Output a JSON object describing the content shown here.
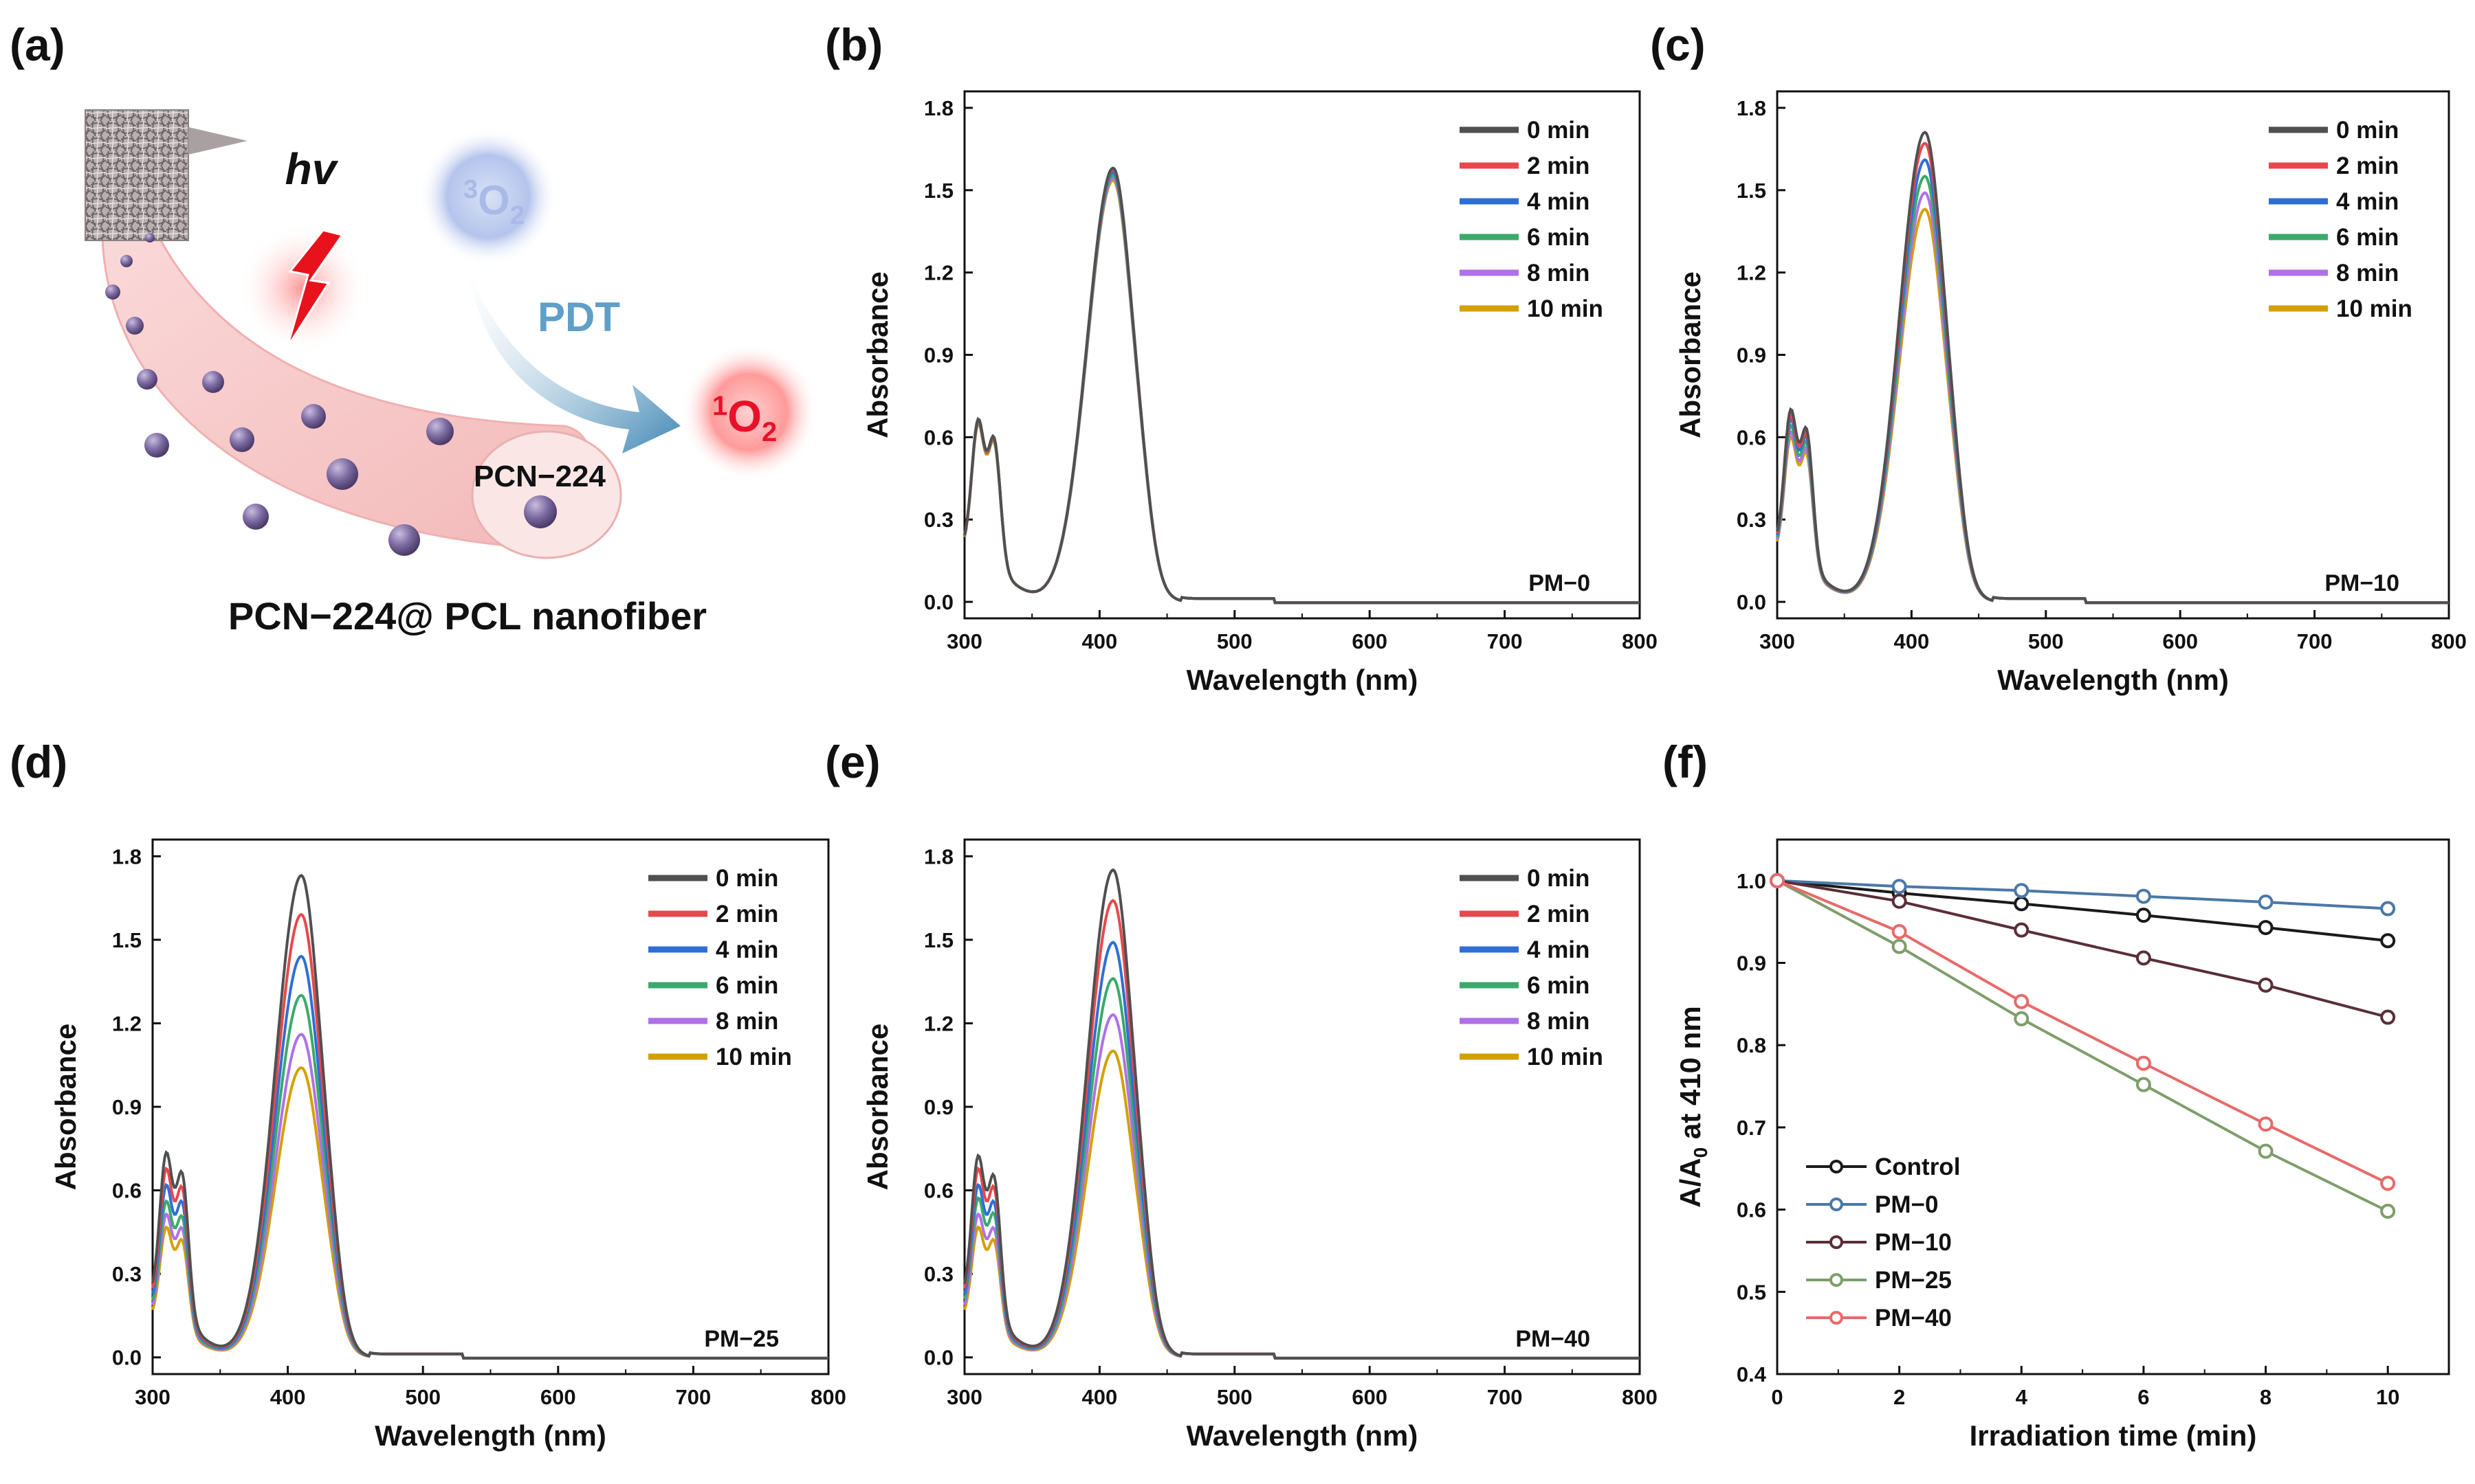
{
  "figure": {
    "panel_a": {
      "letter": "(a)",
      "hv": "hv",
      "pdt": "PDT",
      "triplet_sup": "3",
      "triplet_main": "O",
      "triplet_sub": "2",
      "singlet_sup": "1",
      "singlet_main": "O",
      "singlet_sub": "2",
      "particle_label": "PCN−224",
      "caption": "PCN−224@ PCL nanofiber",
      "colors": {
        "fiber": "#f8c8c8",
        "particle": "#7c6aa0",
        "triplet": "#aab9e6",
        "singlet": "#ff5a5a",
        "singlet_text": "#e8102a",
        "arrow": "#4f8fb5",
        "pdt_text": "#5f9fc8",
        "bolt": "#e8121c"
      }
    }
  },
  "chart_data": [
    {
      "id": "b",
      "letter": "(b)",
      "type": "line",
      "sample_label": "PM−0",
      "xlabel": "Wavelength (nm)",
      "ylabel": "Absorbance",
      "xlim": [
        300,
        800
      ],
      "ylim": [
        -0.06,
        1.86
      ],
      "xticks": [
        "300",
        "400",
        "500",
        "600",
        "700",
        "800"
      ],
      "yticks": [
        "0.0",
        "0.3",
        "0.6",
        "0.9",
        "1.2",
        "1.5",
        "1.8"
      ],
      "legend": "top-right",
      "series": [
        {
          "name": "0 min",
          "color": "#505050",
          "peak": 1.58,
          "q": 0.57
        },
        {
          "name": "2 min",
          "color": "#e8484c",
          "peak": 1.575,
          "q": 0.565
        },
        {
          "name": "4 min",
          "color": "#2e6fd6",
          "peak": 1.565,
          "q": 0.565
        },
        {
          "name": "6 min",
          "color": "#3aaa6a",
          "peak": 1.555,
          "q": 0.56
        },
        {
          "name": "8 min",
          "color": "#b070e8",
          "peak": 1.545,
          "q": 0.56
        },
        {
          "name": "10 min",
          "color": "#d4a000",
          "peak": 1.535,
          "q": 0.555
        }
      ]
    },
    {
      "id": "c",
      "letter": "(c)",
      "type": "line",
      "sample_label": "PM−10",
      "xlabel": "Wavelength (nm)",
      "ylabel": "Absorbance",
      "xlim": [
        300,
        800
      ],
      "ylim": [
        -0.06,
        1.86
      ],
      "xticks": [
        "300",
        "400",
        "500",
        "600",
        "700",
        "800"
      ],
      "yticks": [
        "0.0",
        "0.3",
        "0.6",
        "0.9",
        "1.2",
        "1.5",
        "1.8"
      ],
      "legend": "top-right",
      "series": [
        {
          "name": "0 min",
          "color": "#505050",
          "peak": 1.71,
          "q": 0.6
        },
        {
          "name": "2 min",
          "color": "#e8484c",
          "peak": 1.67,
          "q": 0.585
        },
        {
          "name": "4 min",
          "color": "#2e6fd6",
          "peak": 1.61,
          "q": 0.57
        },
        {
          "name": "6 min",
          "color": "#3aaa6a",
          "peak": 1.55,
          "q": 0.55
        },
        {
          "name": "8 min",
          "color": "#b070e8",
          "peak": 1.49,
          "q": 0.53
        },
        {
          "name": "10 min",
          "color": "#d4a000",
          "peak": 1.43,
          "q": 0.515
        }
      ]
    },
    {
      "id": "d",
      "letter": "(d)",
      "type": "line",
      "sample_label": "PM−25",
      "xlabel": "Wavelength (nm)",
      "ylabel": "Absorbance",
      "xlim": [
        300,
        800
      ],
      "ylim": [
        -0.06,
        1.86
      ],
      "xticks": [
        "300",
        "400",
        "500",
        "600",
        "700",
        "800"
      ],
      "yticks": [
        "0.0",
        "0.3",
        "0.6",
        "0.9",
        "1.2",
        "1.5",
        "1.8"
      ],
      "legend": "top-right",
      "series": [
        {
          "name": "0 min",
          "color": "#505050",
          "peak": 1.73,
          "q": 0.63
        },
        {
          "name": "2 min",
          "color": "#e8484c",
          "peak": 1.59,
          "q": 0.58
        },
        {
          "name": "4 min",
          "color": "#2e6fd6",
          "peak": 1.44,
          "q": 0.53
        },
        {
          "name": "6 min",
          "color": "#3aaa6a",
          "peak": 1.3,
          "q": 0.48
        },
        {
          "name": "8 min",
          "color": "#b070e8",
          "peak": 1.16,
          "q": 0.44
        },
        {
          "name": "10 min",
          "color": "#d4a000",
          "peak": 1.04,
          "q": 0.4
        }
      ]
    },
    {
      "id": "e",
      "letter": "(e)",
      "type": "line",
      "sample_label": "PM−40",
      "xlabel": "Wavelength (nm)",
      "ylabel": "Absorbance",
      "xlim": [
        300,
        800
      ],
      "ylim": [
        -0.06,
        1.86
      ],
      "xticks": [
        "300",
        "400",
        "500",
        "600",
        "700",
        "800"
      ],
      "yticks": [
        "0.0",
        "0.3",
        "0.6",
        "0.9",
        "1.2",
        "1.5",
        "1.8"
      ],
      "legend": "top-right",
      "series": [
        {
          "name": "0 min",
          "color": "#505050",
          "peak": 1.75,
          "q": 0.62
        },
        {
          "name": "2 min",
          "color": "#e8484c",
          "peak": 1.64,
          "q": 0.58
        },
        {
          "name": "4 min",
          "color": "#2e6fd6",
          "peak": 1.49,
          "q": 0.53
        },
        {
          "name": "6 min",
          "color": "#3aaa6a",
          "peak": 1.36,
          "q": 0.49
        },
        {
          "name": "8 min",
          "color": "#b070e8",
          "peak": 1.23,
          "q": 0.44
        },
        {
          "name": "10 min",
          "color": "#d4a000",
          "peak": 1.1,
          "q": 0.4
        }
      ]
    },
    {
      "id": "f",
      "letter": "(f)",
      "type": "line",
      "xlabel": "Irradiation time (min)",
      "ylabel_main": "A/A",
      "ylabel_sub": "0",
      "ylabel_rest": " at 410 nm",
      "xlim": [
        0,
        11
      ],
      "ylim": [
        0.4,
        1.05
      ],
      "x": [
        0,
        2,
        4,
        6,
        8,
        10
      ],
      "xticks": [
        "0",
        "2",
        "4",
        "6",
        "8",
        "10"
      ],
      "yticks": [
        "0.4",
        "0.5",
        "0.6",
        "0.7",
        "0.8",
        "0.9",
        "1.0"
      ],
      "legend": "bottom-left",
      "series": [
        {
          "name": "Control",
          "color": "#1a1a1a",
          "values": [
            1.0,
            0.985,
            0.972,
            0.958,
            0.943,
            0.927
          ]
        },
        {
          "name": "PM−0",
          "color": "#4a78a8",
          "values": [
            1.0,
            0.993,
            0.988,
            0.981,
            0.974,
            0.966
          ]
        },
        {
          "name": "PM−10",
          "color": "#5a2e38",
          "values": [
            1.0,
            0.975,
            0.94,
            0.906,
            0.873,
            0.834
          ]
        },
        {
          "name": "PM−25",
          "color": "#7e9e6a",
          "values": [
            1.0,
            0.92,
            0.832,
            0.752,
            0.671,
            0.598
          ]
        },
        {
          "name": "PM−40",
          "color": "#e86a6a",
          "values": [
            1.0,
            0.938,
            0.853,
            0.778,
            0.704,
            0.632
          ]
        }
      ]
    }
  ]
}
